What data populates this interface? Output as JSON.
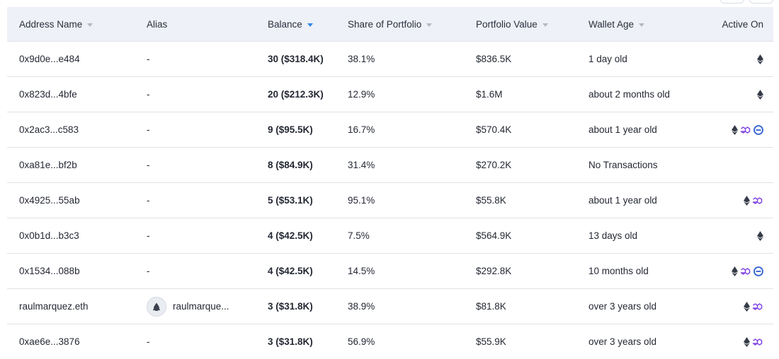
{
  "table": {
    "columns": {
      "address_name": "Address Name",
      "alias": "Alias",
      "balance": "Balance",
      "share": "Share of Portfolio",
      "portfolio_value": "Portfolio Value",
      "wallet_age": "Wallet Age",
      "active_on": "Active On"
    },
    "sorted_column": "balance",
    "sort_indicator_color": "#2f86e6",
    "rows": [
      {
        "name": "0x9d0e...e484",
        "alias": "-",
        "balance": "30 ($318.4K)",
        "share": "38.1%",
        "pv": "$836.5K",
        "age": "1 day old",
        "chains": [
          "ethereum"
        ]
      },
      {
        "name": "0x823d...4bfe",
        "alias": "-",
        "balance": "20 ($212.3K)",
        "share": "12.9%",
        "pv": "$1.6M",
        "age": "about 2 months old",
        "chains": [
          "ethereum"
        ]
      },
      {
        "name": "0x2ac3...c583",
        "alias": "-",
        "balance": "9 ($95.5K)",
        "share": "16.7%",
        "pv": "$570.4K",
        "age": "about 1 year old",
        "chains": [
          "ethereum",
          "polygon",
          "base"
        ]
      },
      {
        "name": "0xa81e...bf2b",
        "alias": "-",
        "balance": "8 ($84.9K)",
        "share": "31.4%",
        "pv": "$270.2K",
        "age": "No Transactions",
        "chains": []
      },
      {
        "name": "0x4925...55ab",
        "alias": "-",
        "balance": "5 ($53.1K)",
        "share": "95.1%",
        "pv": "$55.8K",
        "age": "about 1 year old",
        "chains": [
          "ethereum",
          "polygon"
        ]
      },
      {
        "name": "0x0b1d...b3c3",
        "alias": "-",
        "balance": "4 ($42.5K)",
        "share": "7.5%",
        "pv": "$564.9K",
        "age": "13 days old",
        "chains": [
          "ethereum"
        ]
      },
      {
        "name": "0x1534...088b",
        "alias": "-",
        "balance": "4 ($42.5K)",
        "share": "14.5%",
        "pv": "$292.8K",
        "age": "10 months old",
        "chains": [
          "ethereum",
          "polygon",
          "base"
        ]
      },
      {
        "name": "raulmarquez.eth",
        "alias": "raulmarque...",
        "alias_icon": "ens-avatar-icon",
        "balance": "3 ($31.8K)",
        "share": "38.9%",
        "pv": "$81.8K",
        "age": "over 3 years old",
        "chains": [
          "ethereum",
          "polygon"
        ]
      },
      {
        "name": "0xae6e...3876",
        "alias": "-",
        "balance": "3 ($31.8K)",
        "share": "56.9%",
        "pv": "$55.9K",
        "age": "over 3 years old",
        "chains": [
          "ethereum",
          "polygon"
        ]
      }
    ]
  },
  "chain_colors": {
    "ethereum": "#343a46",
    "polygon": "#8247e5",
    "base": "#2f5fd0"
  }
}
